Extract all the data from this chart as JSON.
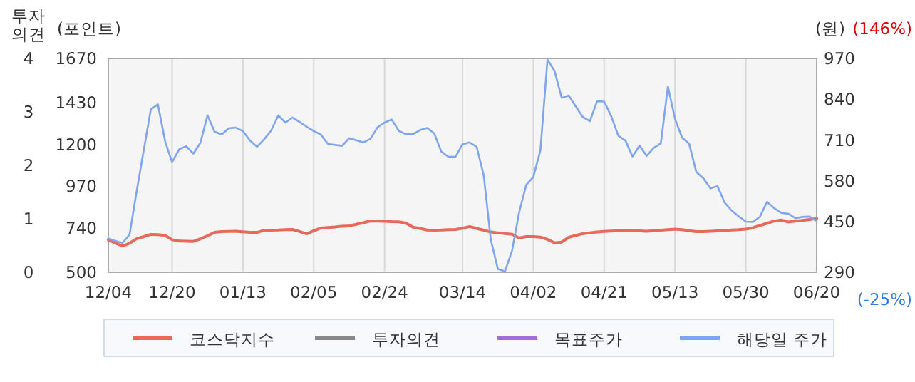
{
  "chart_data": {
    "type": "line",
    "categories": [
      "12/04",
      null,
      null,
      null,
      null,
      null,
      null,
      null,
      null,
      "12/20",
      null,
      null,
      null,
      null,
      null,
      null,
      null,
      null,
      null,
      "01/13",
      null,
      null,
      null,
      null,
      null,
      null,
      null,
      null,
      null,
      "02/05",
      null,
      null,
      null,
      null,
      null,
      null,
      null,
      null,
      null,
      "02/24",
      null,
      null,
      null,
      null,
      null,
      null,
      null,
      null,
      null,
      null,
      "03/14",
      null,
      null,
      null,
      null,
      null,
      null,
      null,
      null,
      null,
      "04/02",
      null,
      null,
      null,
      null,
      null,
      null,
      null,
      null,
      null,
      "04/21",
      null,
      null,
      null,
      null,
      null,
      null,
      null,
      null,
      null,
      "05/13",
      null,
      null,
      null,
      null,
      null,
      null,
      null,
      null,
      null,
      "05/30",
      null,
      null,
      null,
      null,
      null,
      null,
      null,
      null,
      null,
      "06/20"
    ],
    "ylabel": "(포인트)",
    "ylim": [
      500,
      1670
    ],
    "yticks": [
      500,
      740,
      970,
      1200,
      1430,
      1670
    ],
    "y2label": "(원)",
    "y2lim": [
      290,
      970
    ],
    "y2ticks": [
      290,
      450,
      580,
      710,
      840,
      970
    ],
    "y3label": "투자의견",
    "y3lim": [
      0,
      4
    ],
    "y3ticks": [
      0,
      1,
      2,
      3,
      4
    ],
    "grid": "x",
    "legend": "bottom",
    "line_style": "solid",
    "annotations": [
      "(146%)",
      "(-25%)"
    ],
    "series": [
      {
        "name": "코스닥지수",
        "color": "#e8695a",
        "values": [
          677,
          660,
          643,
          659,
          684,
          695,
          707,
          706,
          702,
          678,
          671,
          670,
          669,
          683,
          700,
          718,
          722,
          723,
          724,
          721,
          718,
          718,
          729,
          730,
          731,
          733,
          734,
          723,
          710,
          727,
          742,
          745,
          748,
          752,
          754,
          762,
          771,
          781,
          780,
          779,
          777,
          776,
          769,
          747,
          740,
          731,
          730,
          731,
          733,
          734,
          741,
          750,
          740,
          730,
          720,
          716,
          712,
          708,
          687,
          695,
          695,
          692,
          680,
          661,
          665,
          691,
          702,
          711,
          716,
          720,
          723,
          725,
          727,
          729,
          728,
          726,
          724,
          727,
          730,
          733,
          736,
          733,
          727,
          722,
          722,
          724,
          726,
          728,
          731,
          733,
          736,
          744,
          756,
          768,
          780,
          786,
          775,
          780,
          784,
          789,
          794
        ]
      },
      {
        "name": "투자의견",
        "color": "#888888",
        "axis": "y3",
        "values": [
          null,
          null,
          null,
          null,
          null,
          null,
          null,
          null,
          null,
          null,
          null,
          null,
          null,
          null,
          null,
          null,
          null,
          null,
          null,
          null,
          null,
          null,
          null,
          null,
          null,
          null,
          null,
          null,
          null,
          null,
          null,
          null,
          null,
          null,
          null,
          null,
          null,
          null,
          null,
          null,
          null,
          null,
          null,
          null,
          null,
          null,
          null,
          null,
          null,
          null,
          null,
          null,
          null,
          null,
          null,
          null,
          null,
          null,
          null,
          null,
          null,
          null,
          null,
          null,
          null,
          null,
          null,
          null,
          null,
          null,
          null,
          null,
          null,
          null,
          null,
          null,
          null,
          null,
          null,
          null,
          null,
          null,
          null,
          null,
          null,
          null,
          null,
          null,
          null,
          null,
          null,
          null,
          null,
          null,
          null,
          null,
          null,
          null,
          null,
          null,
          null
        ]
      },
      {
        "name": "목표주가",
        "color": "#a070d0",
        "axis": "y2",
        "values": [
          null,
          null,
          null,
          null,
          null,
          null,
          null,
          null,
          null,
          null,
          null,
          null,
          null,
          null,
          null,
          null,
          null,
          null,
          null,
          null,
          null,
          null,
          null,
          null,
          null,
          null,
          null,
          null,
          null,
          null,
          null,
          null,
          null,
          null,
          null,
          null,
          null,
          null,
          null,
          null,
          null,
          null,
          null,
          null,
          null,
          null,
          null,
          null,
          null,
          null,
          null,
          null,
          null,
          null,
          null,
          null,
          null,
          null,
          null,
          null,
          null,
          null,
          null,
          null,
          null,
          null,
          null,
          null,
          null,
          null,
          null,
          null,
          null,
          null,
          null,
          null,
          null,
          null,
          null,
          null,
          null,
          null,
          null,
          null,
          null,
          null,
          null,
          null,
          null,
          null,
          null,
          null,
          null,
          null,
          null,
          null,
          null,
          null,
          null,
          null,
          null
        ]
      },
      {
        "name": "해당일 주가",
        "color": "#7fa5ee",
        "axis": "y2",
        "values": [
          397,
          390,
          383,
          410,
          548,
          678,
          808,
          824,
          708,
          640,
          681,
          691,
          667,
          702,
          789,
          737,
          728,
          748,
          750,
          739,
          709,
          689,
          713,
          741,
          789,
          766,
          782,
          768,
          753,
          739,
          728,
          698,
          695,
          692,
          716,
          710,
          703,
          714,
          751,
          766,
          776,
          740,
          729,
          729,
          742,
          749,
          732,
          674,
          657,
          657,
          697,
          703,
          689,
          598,
          393,
          300,
          293,
          359,
          481,
          568,
          593,
          678,
          967,
          930,
          845,
          852,
          817,
          783,
          771,
          834,
          833,
          786,
          724,
          709,
          658,
          693,
          660,
          686,
          700,
          881,
          778,
          718,
          699,
          609,
          589,
          557,
          564,
          512,
          486,
          468,
          451,
          450,
          467,
          514,
          494,
          479,
          476,
          462,
          466,
          467,
          453
        ]
      }
    ]
  }
}
